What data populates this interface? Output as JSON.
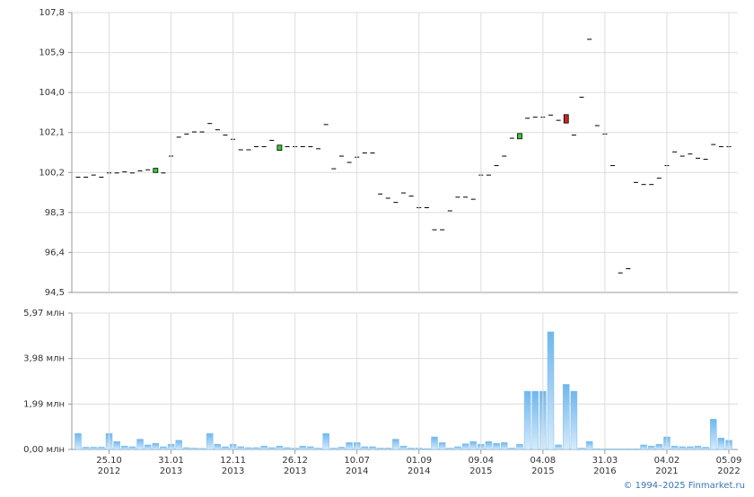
{
  "chart_data": [
    {
      "type": "candlestick",
      "series": [
        {
          "name": "open",
          "values": [
            100.0,
            100.0,
            100.1,
            100.0,
            100.2,
            100.2,
            100.25,
            100.2,
            100.3,
            100.35,
            100.2,
            100.2,
            101.0,
            101.9,
            102.05,
            102.15,
            102.15,
            102.55,
            102.25,
            102.0,
            101.8,
            101.3,
            101.3,
            101.45,
            101.45,
            101.75,
            101.25,
            101.45,
            101.45,
            101.45,
            101.45,
            101.35,
            102.5,
            100.4,
            101.0,
            100.7,
            100.95,
            101.15,
            101.15,
            99.2,
            99.0,
            98.8,
            99.25,
            99.1,
            98.55,
            98.55,
            97.5,
            97.5,
            98.4,
            99.05,
            99.05,
            98.95,
            100.1,
            100.1,
            100.55,
            101.0,
            101.85,
            101.8,
            102.8,
            102.85,
            102.85,
            102.95,
            102.7,
            102.95,
            102.0,
            103.8,
            106.55,
            102.45,
            102.05,
            100.55,
            95.45,
            95.65,
            99.75,
            99.65,
            99.65,
            99.95,
            100.55,
            101.2,
            101.0,
            101.1,
            100.9,
            100.85,
            101.55,
            101.45,
            101.45
          ]
        },
        {
          "name": "close",
          "values": [
            100.0,
            100.0,
            100.1,
            100.0,
            100.2,
            100.2,
            100.25,
            100.2,
            100.3,
            100.35,
            100.4,
            100.2,
            101.0,
            101.9,
            102.05,
            102.15,
            102.15,
            102.55,
            102.25,
            102.0,
            101.8,
            101.3,
            101.3,
            101.45,
            101.45,
            101.75,
            101.5,
            101.45,
            101.45,
            101.45,
            101.45,
            101.35,
            102.5,
            100.4,
            101.0,
            100.7,
            100.95,
            101.15,
            101.15,
            99.2,
            99.0,
            98.8,
            99.25,
            99.1,
            98.55,
            98.55,
            97.5,
            97.5,
            98.4,
            99.05,
            99.05,
            98.95,
            100.1,
            100.1,
            100.55,
            101.0,
            101.85,
            102.05,
            102.8,
            102.85,
            102.85,
            102.95,
            102.7,
            102.55,
            102.0,
            103.8,
            106.55,
            102.45,
            102.05,
            100.55,
            95.45,
            95.65,
            99.75,
            99.65,
            99.65,
            99.95,
            100.55,
            101.2,
            101.0,
            101.1,
            100.9,
            100.85,
            101.55,
            101.45,
            101.45
          ]
        }
      ],
      "up_color": "#33cc33",
      "down_color": "#cc2222",
      "flat_color": "#000000",
      "ylim": [
        94.5,
        107.8
      ],
      "yticks": [
        {
          "value": 94.5,
          "label": "94,5"
        },
        {
          "value": 96.4,
          "label": "96,4"
        },
        {
          "value": 98.3,
          "label": "98,3"
        },
        {
          "value": 100.2,
          "label": "100,2"
        },
        {
          "value": 102.1,
          "label": "102,1"
        },
        {
          "value": 104.0,
          "label": "104,0"
        },
        {
          "value": 105.9,
          "label": "105,9"
        },
        {
          "value": 107.8,
          "label": "107,8"
        }
      ],
      "grid": true
    },
    {
      "type": "bar",
      "categories": [
        null,
        null,
        null,
        null,
        [
          "25.10",
          "2012"
        ],
        null,
        null,
        null,
        null,
        null,
        null,
        null,
        [
          "31.01",
          "2013"
        ],
        null,
        null,
        null,
        null,
        null,
        null,
        null,
        [
          "12.11",
          "2013"
        ],
        null,
        null,
        null,
        null,
        null,
        null,
        null,
        [
          "26.12",
          "2013"
        ],
        null,
        null,
        null,
        null,
        null,
        null,
        null,
        [
          "10.07",
          "2014"
        ],
        null,
        null,
        null,
        null,
        null,
        null,
        null,
        [
          "01.09",
          "2014"
        ],
        null,
        null,
        null,
        null,
        null,
        null,
        null,
        [
          "09.04",
          "2015"
        ],
        null,
        null,
        null,
        null,
        null,
        null,
        null,
        [
          "04.08",
          "2015"
        ],
        null,
        null,
        null,
        null,
        null,
        null,
        null,
        [
          "31.03",
          "2016"
        ],
        null,
        null,
        null,
        null,
        null,
        null,
        null,
        [
          "04.02",
          "2021"
        ],
        null,
        null,
        null,
        null,
        null,
        null,
        null,
        [
          "05.09",
          "2022"
        ]
      ],
      "values": [
        0.7,
        0.1,
        0.1,
        0.1,
        0.7,
        0.35,
        0.15,
        0.12,
        0.45,
        0.2,
        0.27,
        0.12,
        0.23,
        0.4,
        0.08,
        0.06,
        0.05,
        0.7,
        0.23,
        0.12,
        0.23,
        0.12,
        0.08,
        0.08,
        0.15,
        0.08,
        0.15,
        0.08,
        0.06,
        0.15,
        0.12,
        0.06,
        0.7,
        0.06,
        0.1,
        0.3,
        0.3,
        0.12,
        0.12,
        0.06,
        0.06,
        0.45,
        0.15,
        0.06,
        0.06,
        0.04,
        0.55,
        0.3,
        0.06,
        0.12,
        0.25,
        0.35,
        0.23,
        0.35,
        0.27,
        0.3,
        0.06,
        0.23,
        2.55,
        2.55,
        2.55,
        5.15,
        0.2,
        2.85,
        2.55,
        0.06,
        0.35,
        0.03,
        0.03,
        0.03,
        0.03,
        0.03,
        0.03,
        0.2,
        0.15,
        0.23,
        0.55,
        0.15,
        0.12,
        0.12,
        0.15,
        0.1,
        1.33,
        0.5,
        0.4
      ],
      "color": "#7fbff0",
      "ylim": [
        0,
        5.97
      ],
      "yticks": [
        {
          "value": 0,
          "label": "0,00 млн"
        },
        {
          "value": 1.99,
          "label": "1,99 млн"
        },
        {
          "value": 3.98,
          "label": "3,98 млн"
        },
        {
          "value": 5.97,
          "label": "5,97 млн"
        }
      ],
      "grid": true
    }
  ],
  "credit": "© 1994–2025 Finmarket.ru"
}
